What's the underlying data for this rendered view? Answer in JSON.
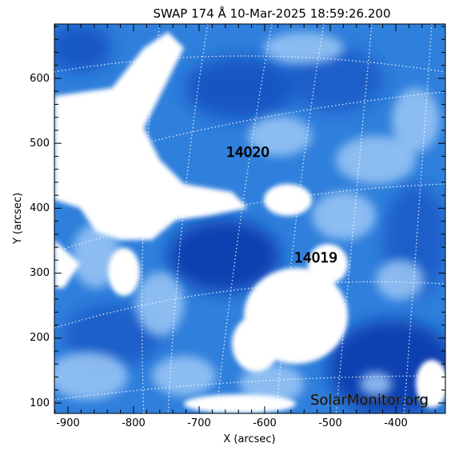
{
  "title": "SWAP 174 Å 10-Mar-2025 18:59:26.200",
  "xlabel": "X (arcsec)",
  "ylabel": "Y (arcsec)",
  "x_ticks": [
    "-900",
    "-800",
    "-700",
    "-600",
    "-500",
    "-400"
  ],
  "y_ticks": [
    "100",
    "200",
    "300",
    "400",
    "500",
    "600"
  ],
  "regions": [
    {
      "label": "14020"
    },
    {
      "label": "14019"
    }
  ],
  "watermark": "SolarMonitor.org",
  "colors": {
    "deep_blue": "#0a3fb0",
    "mid_blue": "#2f7fdc",
    "light_blue": "#9cc8f5",
    "bright": "#ffffff",
    "frame": "#000000"
  }
}
